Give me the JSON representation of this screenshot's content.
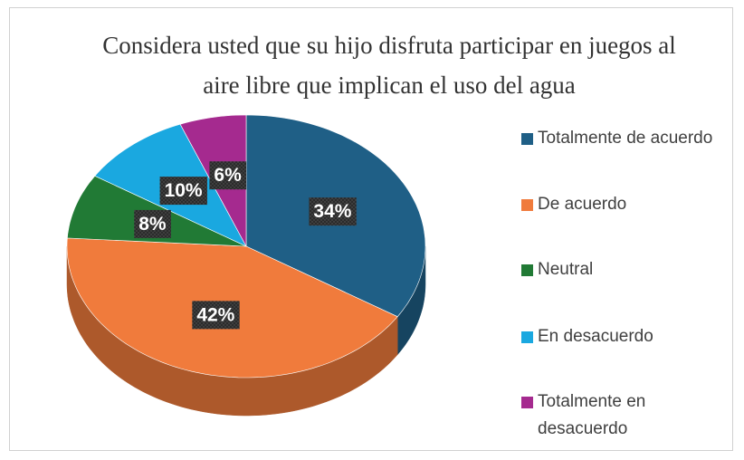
{
  "chart_data": {
    "type": "pie3d",
    "title": "Considera usted que su hijo disfruta participar en juegos al aire libre que implican el uso del agua",
    "categories": [
      "Totalmente de acuerdo",
      "De acuerdo",
      "Neutral",
      "En desacuerdo",
      "Totalmente en desacuerdo"
    ],
    "values": [
      34,
      42,
      8,
      10,
      6
    ],
    "value_labels": [
      "34%",
      "42%",
      "8%",
      "10%",
      "6%"
    ],
    "colors": [
      "#1f5f86",
      "#f07b3c",
      "#217a35",
      "#1aa8e0",
      "#a52a8f"
    ],
    "legend": "right"
  }
}
